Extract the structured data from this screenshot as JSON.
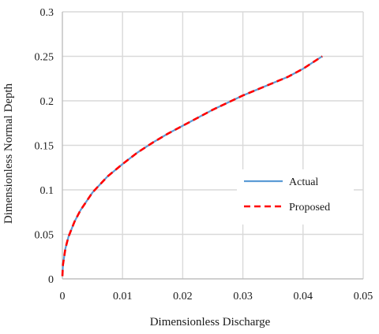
{
  "chart_data": {
    "type": "line",
    "xlabel": "Dimensionless Discharge",
    "ylabel": "Dimensionless Normal Depth",
    "xlim": [
      0,
      0.05
    ],
    "ylim": [
      0,
      0.3
    ],
    "xticks": [
      0,
      0.01,
      0.02,
      0.03,
      0.04,
      0.05
    ],
    "yticks": [
      0,
      0.05,
      0.1,
      0.15,
      0.2,
      0.25,
      0.3
    ],
    "xtick_labels": [
      "0",
      "0.01",
      "0.02",
      "0.03",
      "0.04",
      "0.05"
    ],
    "ytick_labels": [
      "0",
      "0.05",
      "0.1",
      "0.15",
      "0.2",
      "0.25",
      "0.3"
    ],
    "grid": true,
    "legend_position": "right",
    "series": [
      {
        "name": "Actual",
        "color": "#5b9bd5",
        "style": "solid",
        "x": [
          0,
          0.0001,
          0.0005,
          0.001,
          0.002,
          0.003,
          0.005,
          0.0075,
          0.01,
          0.0125,
          0.015,
          0.0175,
          0.02,
          0.0225,
          0.025,
          0.0275,
          0.03,
          0.0325,
          0.035,
          0.0375,
          0.04,
          0.0425,
          0.0432
        ],
        "y": [
          0.003,
          0.016,
          0.034,
          0.047,
          0.064,
          0.077,
          0.097,
          0.115,
          0.129,
          0.142,
          0.153,
          0.163,
          0.172,
          0.181,
          0.19,
          0.198,
          0.206,
          0.213,
          0.22,
          0.227,
          0.236,
          0.247,
          0.25
        ]
      },
      {
        "name": "Proposed",
        "color": "#ff0000",
        "style": "dashed",
        "x": [
          0,
          0.0001,
          0.0005,
          0.001,
          0.002,
          0.003,
          0.005,
          0.0075,
          0.01,
          0.0125,
          0.015,
          0.0175,
          0.02,
          0.0225,
          0.025,
          0.0275,
          0.03,
          0.0325,
          0.035,
          0.0375,
          0.04,
          0.0425,
          0.0432
        ],
        "y": [
          0.003,
          0.016,
          0.034,
          0.047,
          0.064,
          0.077,
          0.097,
          0.115,
          0.129,
          0.142,
          0.153,
          0.163,
          0.172,
          0.181,
          0.19,
          0.198,
          0.206,
          0.213,
          0.22,
          0.227,
          0.236,
          0.247,
          0.25
        ]
      }
    ]
  }
}
